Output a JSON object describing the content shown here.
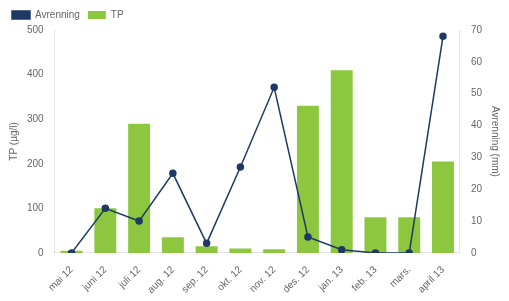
{
  "chart_data": {
    "type": "bar",
    "categories": [
      "mai 12",
      "juni 12",
      "juli 12",
      "aug. 12",
      "sep. 12",
      "okt. 12",
      "nov. 12",
      "des. 12",
      "jan. 13",
      "feb. 13",
      "mars.",
      "april 13"
    ],
    "series": [
      {
        "name": "TP",
        "type": "bar",
        "color": "#8DC63F",
        "values": [
          5,
          100,
          290,
          35,
          15,
          10,
          8,
          330,
          410,
          80,
          80,
          205
        ]
      },
      {
        "name": "Avrenning",
        "type": "line",
        "color": "#1F3864",
        "marker": "circle",
        "axis": "y2",
        "values": [
          0,
          14,
          10,
          25,
          3,
          27,
          52,
          5,
          1,
          0,
          0,
          68
        ]
      }
    ],
    "ylabel": "TP (µg/l)",
    "y2label": "Avrenning (mm)",
    "ylim": [
      0,
      500
    ],
    "yticks": [
      0,
      100,
      200,
      300,
      400,
      500
    ],
    "y2lim": [
      0,
      70
    ],
    "y2ticks": [
      0,
      10,
      20,
      30,
      40,
      50,
      60,
      70
    ],
    "grid": false,
    "legend": "upper left"
  }
}
